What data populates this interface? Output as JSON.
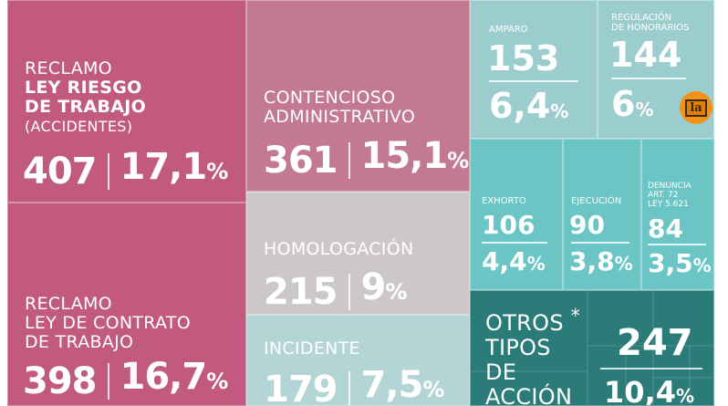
{
  "chart_data": {
    "type": "treemap",
    "title": "",
    "items": [
      {
        "label": [
          "RECLAMO",
          "LEY RIESGO",
          "DE TRABAJO",
          "(ACCIDENTES)"
        ],
        "value": 407,
        "percent": "17,1",
        "color": "#c25a80"
      },
      {
        "label": [
          "RECLAMO",
          "LEY DE CONTRATO",
          "DE TRABAJO"
        ],
        "value": 398,
        "percent": "16,7",
        "color": "#c25a80"
      },
      {
        "label": [
          "CONTENCIOSO",
          "ADMINISTRATIVO"
        ],
        "value": 361,
        "percent": "15,1",
        "color": "#c37a91"
      },
      {
        "label": [
          "HOMOLOGACIÓN"
        ],
        "value": 215,
        "percent": "9",
        "color": "#cdc8c8"
      },
      {
        "label": [
          "INCIDENTE"
        ],
        "value": 179,
        "percent": "7,5",
        "color": "#b3d5d5"
      },
      {
        "label": [
          "AMPARO"
        ],
        "value": 153,
        "percent": "6,4",
        "color": "#9ccdce"
      },
      {
        "label": [
          "REGULACIÓN",
          "DE HONORARIOS"
        ],
        "value": 144,
        "percent": "6",
        "color": "#9ccdce"
      },
      {
        "label": [
          "EXHORTO"
        ],
        "value": 106,
        "percent": "4,4",
        "color": "#6cc5c5"
      },
      {
        "label": [
          "EJECUCIÓN"
        ],
        "value": 90,
        "percent": "3,8",
        "color": "#6cc5c5"
      },
      {
        "label": [
          "DENUNCIA",
          "ART. 72",
          "LEY 5.621"
        ],
        "value": 84,
        "percent": "3,5",
        "color": "#6cc5c5"
      },
      {
        "label": [
          "OTROS",
          "TIPOS",
          "DE",
          "ACCIÓN"
        ],
        "value": 247,
        "percent": "10,4",
        "color": "#2b7b79",
        "footnote": "*"
      }
    ],
    "percent_sign": "%"
  },
  "logo": "la"
}
